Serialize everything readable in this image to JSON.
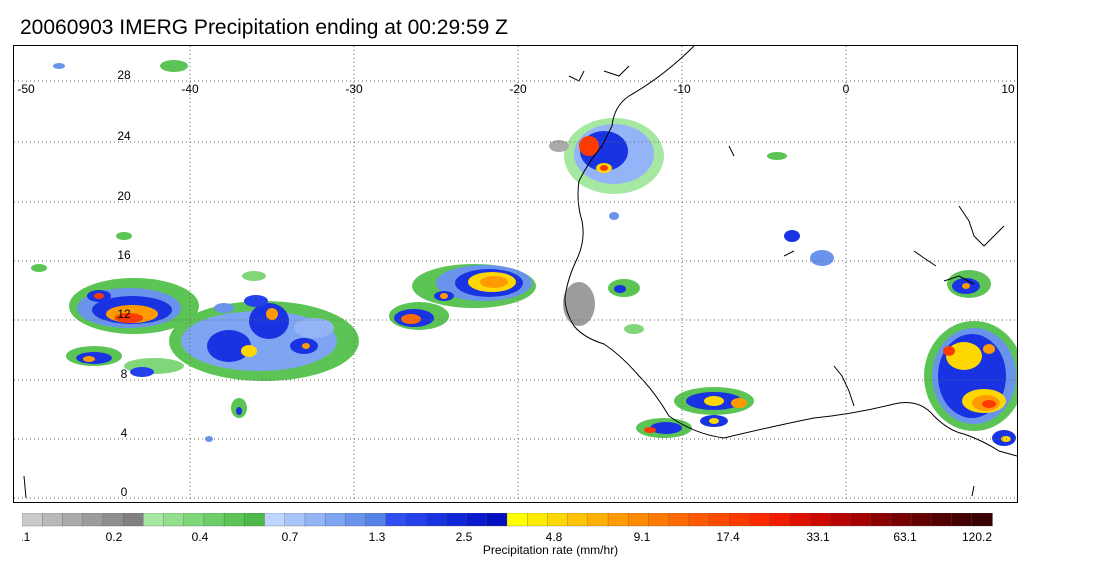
{
  "title": "20060903 IMERG Precipitation ending at 00:29:59 Z",
  "map": {
    "lon_range": [
      -50,
      10
    ],
    "lat_range": [
      -1,
      30
    ],
    "lon_ticks": [
      "-50",
      "-40",
      "-30",
      "-20",
      "-10",
      "0",
      "10"
    ],
    "lat_ticks": [
      "28",
      "24",
      "20",
      "16",
      "12",
      "8",
      "4",
      "0"
    ],
    "gridlines": "dotted",
    "coastline_color": "#000000"
  },
  "colorbar": {
    "title": "Precipitation rate (mm/hr)",
    "tick_labels": [
      "0.1",
      "0.2",
      "0.4",
      "0.7",
      "1.3",
      "2.5",
      "4.8",
      "9.1",
      "17.4",
      "33.1",
      "63.1",
      "120.2"
    ],
    "colors": [
      "#c9c9c9",
      "#b9b9b9",
      "#aaaaaa",
      "#9c9c9c",
      "#8e8e8e",
      "#808080",
      "#a6e8a2",
      "#93df8d",
      "#80d679",
      "#6dcd66",
      "#5bc454",
      "#4dba47",
      "#bfd4ff",
      "#a9c4fb",
      "#93b4f7",
      "#7ea4f2",
      "#6a94ec",
      "#5684e6",
      "#2f4ff0",
      "#2440ea",
      "#1a33e2",
      "#1126d8",
      "#0a1acd",
      "#0410c0",
      "#ffff00",
      "#ffeb00",
      "#ffd700",
      "#ffc300",
      "#ffaf00",
      "#ff9b00",
      "#ff8a00",
      "#ff7a00",
      "#ff6a00",
      "#ff5a00",
      "#ff4a00",
      "#ff3a00",
      "#ff2a00",
      "#f21c00",
      "#e01000",
      "#cc0800",
      "#b80400",
      "#a40000",
      "#8c0000",
      "#780000",
      "#640000",
      "#520000",
      "#440000",
      "#380000"
    ]
  }
}
